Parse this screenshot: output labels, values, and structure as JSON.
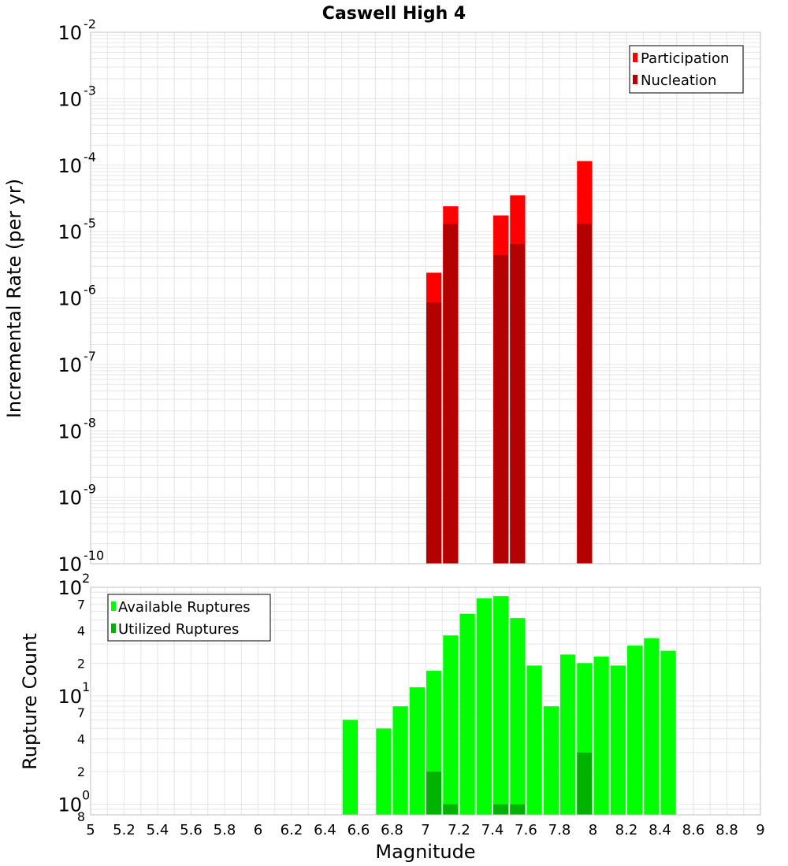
{
  "chart_data": {
    "type": "bar",
    "title": "Caswell High 4",
    "xlabel": "Magnitude",
    "xlim": [
      5,
      9
    ],
    "x_ticks": [
      "5",
      "5.2",
      "5.4",
      "5.6",
      "5.8",
      "6",
      "6.2",
      "6.4",
      "6.6",
      "6.8",
      "7",
      "7.2",
      "7.4",
      "7.6",
      "7.8",
      "8",
      "8.2",
      "8.4",
      "8.6",
      "8.8",
      "9"
    ],
    "colors": {
      "participation": "#ff0000",
      "nucleation": "#b30000",
      "available": "#00ff00",
      "utilized": "#00b300",
      "grid": "#e6e6e6",
      "frame": "#c0c0c0"
    },
    "top_panel": {
      "ylabel": "Incremental Rate (per yr)",
      "yscale": "log",
      "ylim": [
        1e-10,
        0.01
      ],
      "y_ticks": [
        {
          "base": "10",
          "exp": "-10"
        },
        {
          "base": "10",
          "exp": "-9"
        },
        {
          "base": "10",
          "exp": "-8"
        },
        {
          "base": "10",
          "exp": "-7"
        },
        {
          "base": "10",
          "exp": "-6"
        },
        {
          "base": "10",
          "exp": "-5"
        },
        {
          "base": "10",
          "exp": "-4"
        },
        {
          "base": "10",
          "exp": "-3"
        },
        {
          "base": "10",
          "exp": "-2"
        }
      ],
      "legend": [
        "Participation",
        "Nucleation"
      ],
      "legend_position": "top-right",
      "x": [
        7.05,
        7.15,
        7.45,
        7.55,
        7.95
      ],
      "series": [
        {
          "name": "Participation",
          "values": [
            2.4e-06,
            2.4e-05,
            1.75e-05,
            3.5e-05,
            0.000115
          ]
        },
        {
          "name": "Nucleation",
          "values": [
            8.5e-07,
            1.3e-05,
            4.4e-06,
            6.5e-06,
            1.3e-05
          ]
        }
      ]
    },
    "bottom_panel": {
      "ylabel": "Rupture Count",
      "yscale": "log",
      "ylim": [
        0.8,
        100
      ],
      "y_ticks": [
        {
          "value": 0.8,
          "label": "8",
          "kind": "minor"
        },
        {
          "value": 1,
          "base": "10",
          "exp": "0",
          "kind": "major"
        },
        {
          "value": 2,
          "label": "2",
          "kind": "minor"
        },
        {
          "value": 4,
          "label": "4",
          "kind": "minor"
        },
        {
          "value": 7,
          "label": "7",
          "kind": "minor"
        },
        {
          "value": 10,
          "base": "10",
          "exp": "1",
          "kind": "major"
        },
        {
          "value": 20,
          "label": "2",
          "kind": "minor"
        },
        {
          "value": 40,
          "label": "4",
          "kind": "minor"
        },
        {
          "value": 70,
          "label": "7",
          "kind": "minor"
        },
        {
          "value": 100,
          "base": "10",
          "exp": "2",
          "kind": "major"
        }
      ],
      "legend": [
        "Available Ruptures",
        "Utilized Ruptures"
      ],
      "legend_position": "top-left",
      "x": [
        6.55,
        6.75,
        6.85,
        6.95,
        7.05,
        7.15,
        7.25,
        7.35,
        7.45,
        7.55,
        7.65,
        7.75,
        7.85,
        7.95,
        8.05,
        8.15,
        8.25,
        8.35,
        8.45
      ],
      "series": [
        {
          "name": "Available Ruptures",
          "values": [
            6,
            5,
            8,
            12,
            17,
            36,
            57,
            79,
            83,
            52,
            19,
            8,
            24,
            20,
            23,
            19,
            29,
            34,
            26
          ]
        },
        {
          "name": "Utilized Ruptures",
          "values": [
            0,
            0,
            0,
            0,
            2,
            1,
            0,
            0,
            1,
            1,
            0,
            0,
            0,
            3,
            0,
            0,
            0,
            0,
            0
          ]
        }
      ]
    }
  }
}
